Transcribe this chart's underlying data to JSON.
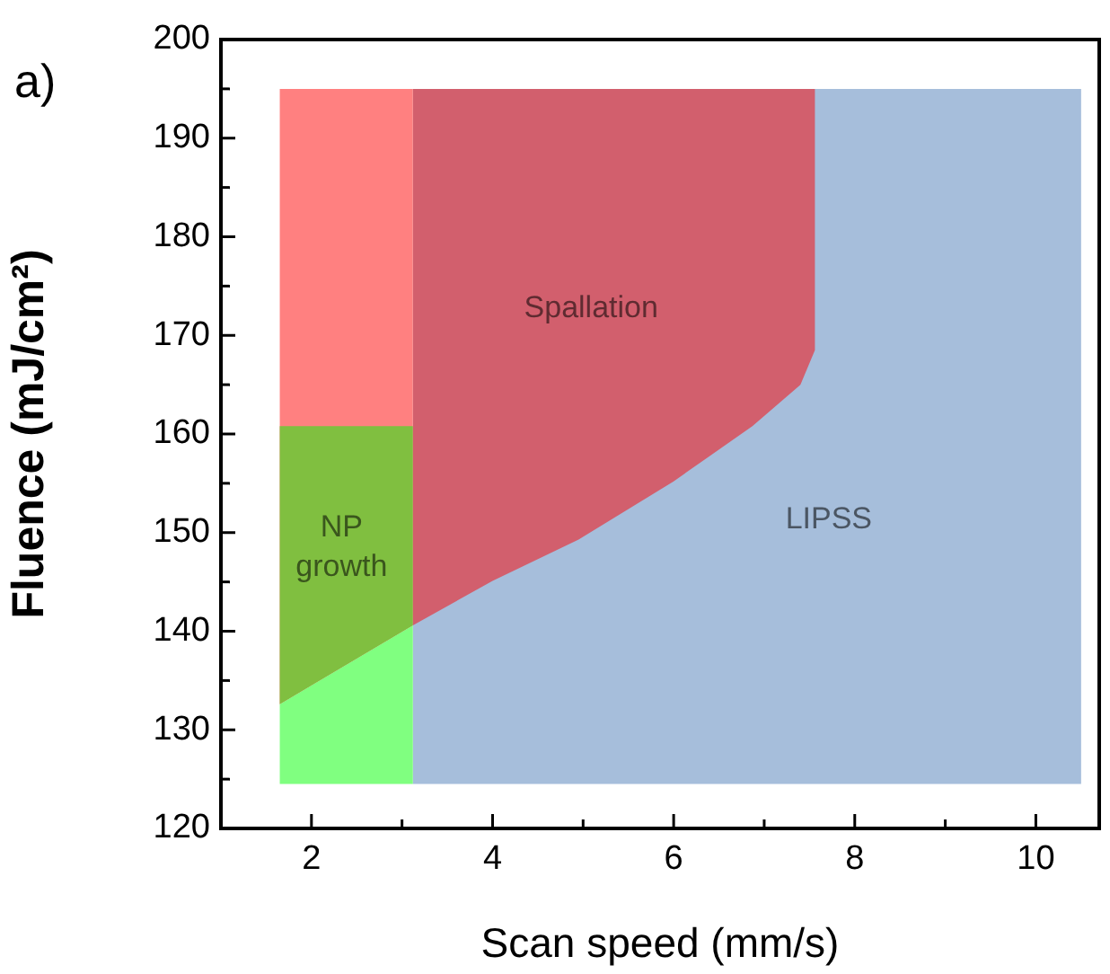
{
  "chart_data": {
    "type": "area",
    "title": "a)",
    "xlabel": "Scan speed (mm/s)",
    "ylabel": "Fluence (mJ/cm²)",
    "xlim": [
      1,
      10.7
    ],
    "ylim": [
      120,
      200
    ],
    "xticks": [
      2,
      {
        "value": 3,
        "label": null
      },
      4,
      {
        "value": 5,
        "label": null
      },
      6,
      {
        "value": 7,
        "label": null
      },
      8,
      {
        "value": 9,
        "label": null
      },
      10
    ],
    "yticks": [
      120,
      {
        "value": 125,
        "label": null
      },
      130,
      {
        "value": 135,
        "label": null
      },
      140,
      {
        "value": 145,
        "label": null
      },
      150,
      {
        "value": 155,
        "label": null
      },
      160,
      {
        "value": 165,
        "label": null
      },
      170,
      {
        "value": 175,
        "label": null
      },
      180,
      {
        "value": 185,
        "label": null
      },
      190,
      {
        "value": 195,
        "label": null
      },
      200
    ],
    "grid": false,
    "legend": false,
    "series": [
      {
        "name": "LIPSS",
        "color": "#a6bedb",
        "x": [
          3.12,
          10.5,
          10.5,
          3.12
        ],
        "values": [
          195,
          195,
          124.5,
          124.5
        ]
      },
      {
        "name": "Spallation",
        "color": "#d25f6d",
        "x": [
          3.12,
          7.56,
          7.56,
          7.4,
          6.87,
          6,
          4.95,
          4,
          3.12
        ],
        "values": [
          195,
          195,
          168.5,
          165,
          160.8,
          155.2,
          149.3,
          145.1,
          140.6
        ]
      },
      {
        "color": "#ff8080",
        "x": [
          1.65,
          3.12,
          3.12,
          1.65
        ],
        "values": [
          195,
          195,
          140.6,
          132.6
        ]
      },
      {
        "color": "#80ff80",
        "x": [
          1.65,
          3.12,
          3.12,
          1.65
        ],
        "values": [
          132.6,
          140.6,
          124.5,
          124.5
        ]
      },
      {
        "name": "NP growth",
        "color": "#80bf40",
        "x": [
          1.65,
          3.12,
          3.12,
          1.65
        ],
        "values": [
          160.8,
          160.8,
          140.6,
          132.6
        ]
      }
    ]
  }
}
